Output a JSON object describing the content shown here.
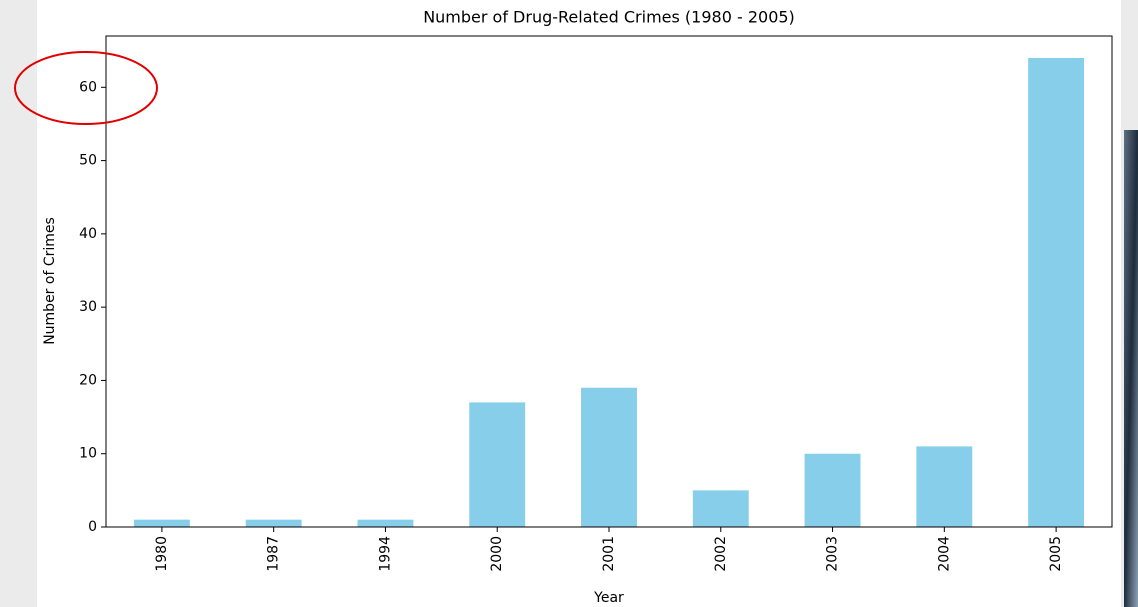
{
  "chart_data": {
    "type": "bar",
    "title": "Number of Drug-Related Crimes (1980 - 2005)",
    "x_label": "Year",
    "y_label": "Number of Crimes",
    "categories": [
      "1980",
      "1987",
      "1994",
      "2000",
      "2001",
      "2002",
      "2003",
      "2004",
      "2005"
    ],
    "values": [
      1,
      1,
      1,
      17,
      19,
      5,
      10,
      11,
      64
    ],
    "color": "#87ceeb",
    "ylim": [
      0,
      67
    ],
    "yticks": [
      0,
      10,
      20,
      30,
      40,
      50,
      60
    ],
    "grid": false
  }
}
